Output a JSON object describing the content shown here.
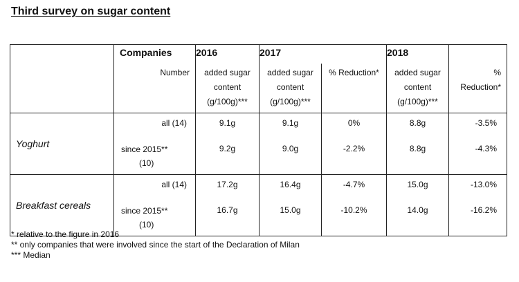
{
  "title": "Third survey on sugar content",
  "table": {
    "companies_label": "Companies",
    "number_label": "Number",
    "years": [
      "2016",
      "2017",
      "2018"
    ],
    "added_sugar_label": "added sugar",
    "content_label": "content",
    "unit_label": "(g/100g)***",
    "reduction_label": "% Reduction*",
    "reduction_pct": "%",
    "reduction_word": "Reduction*",
    "products": [
      {
        "name": "Yoghurt",
        "rows": [
          {
            "category": "all (14)",
            "v2016": "9.1g",
            "v2017": "9.1g",
            "red2017": "0%",
            "v2018": "8.8g",
            "red2018": "-3.5%"
          },
          {
            "category_line1": "since 2015**",
            "category_line2": "(10)",
            "v2016": "9.2g",
            "v2017": "9.0g",
            "red2017": "-2.2%",
            "v2018": "8.8g",
            "red2018": "-4.3%"
          }
        ]
      },
      {
        "name": "Breakfast cereals",
        "rows": [
          {
            "category": "all (14)",
            "v2016": "17.2g",
            "v2017": "16.4g",
            "red2017": "-4.7%",
            "v2018": "15.0g",
            "red2018": "-13.0%"
          },
          {
            "category_line1": "since 2015**",
            "category_line2": "(10)",
            "v2016": "16.7g",
            "v2017": "15.0g",
            "red2017": "-10.2%",
            "v2018": "14.0g",
            "red2018": "-16.2%"
          }
        ]
      }
    ]
  },
  "footnotes": [
    "* relative to the figure in 2016",
    "** only companies that were involved since the start of the Declaration of Milan",
    "*** Median"
  ]
}
